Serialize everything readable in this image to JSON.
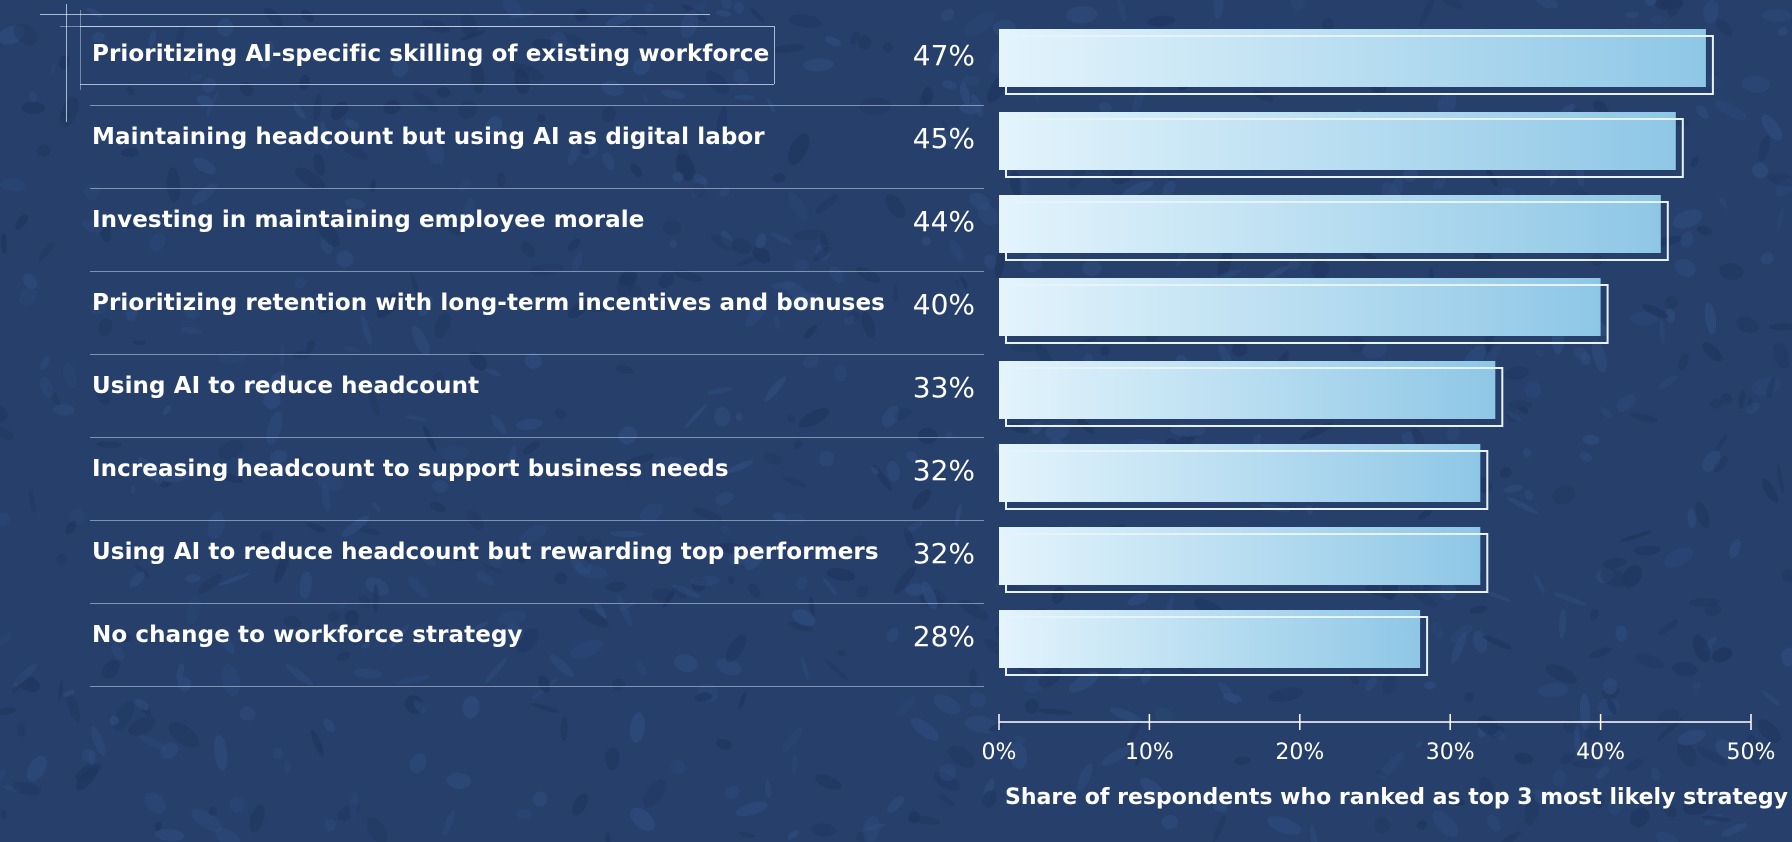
{
  "chart_data": {
    "type": "bar",
    "orientation": "horizontal",
    "categories": [
      "Prioritizing AI-specific skilling of existing workforce",
      "Maintaining headcount but using AI as digital labor",
      "Investing in maintaining employee morale",
      "Prioritizing retention with long-term incentives and bonuses",
      "Using AI to reduce headcount",
      "Increasing headcount to support business needs",
      "Using AI to reduce headcount but rewarding top performers",
      "No change to workforce strategy"
    ],
    "values": [
      47,
      45,
      44,
      40,
      33,
      32,
      32,
      28
    ],
    "value_labels": [
      "47%",
      "45%",
      "44%",
      "40%",
      "33%",
      "32%",
      "32%",
      "28%"
    ],
    "xlim": [
      0,
      50
    ],
    "x_ticks": [
      "0%",
      "10%",
      "20%",
      "30%",
      "40%",
      "50%"
    ],
    "xlabel": "Share of respondents who ranked as top 3 most likely strategy",
    "title": "",
    "ylabel": "",
    "grid": false,
    "legend": "none"
  },
  "colors": {
    "background": "#263f6b",
    "bar_light": "#e3f4fc",
    "bar_dark": "#8ec7e6",
    "text": "#ffffff"
  }
}
